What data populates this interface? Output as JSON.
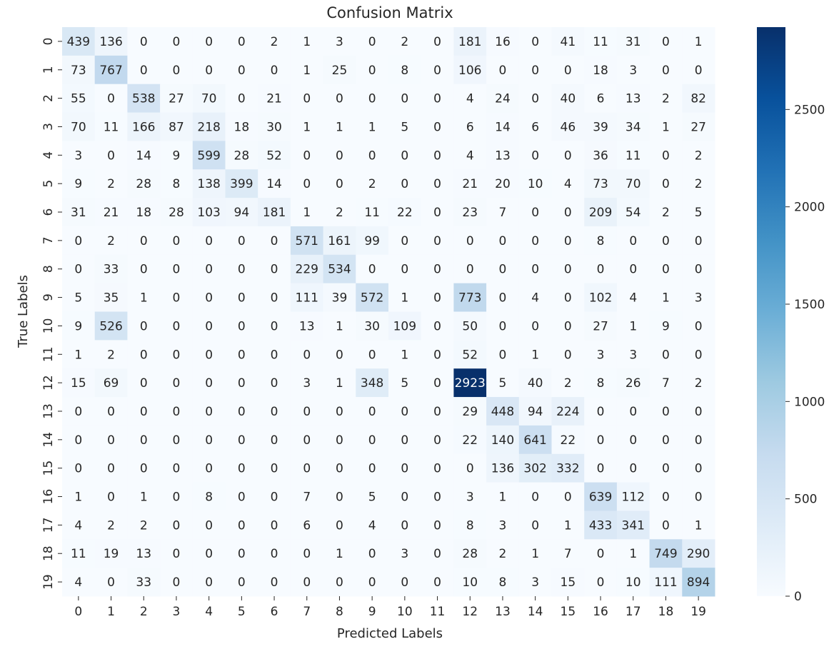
{
  "chart_data": {
    "type": "heatmap",
    "title": "Confusion Matrix",
    "xlabel": "Predicted Labels",
    "ylabel": "True Labels",
    "x_categories": [
      "0",
      "1",
      "2",
      "3",
      "4",
      "5",
      "6",
      "7",
      "8",
      "9",
      "10",
      "11",
      "12",
      "13",
      "14",
      "15",
      "16",
      "17",
      "18",
      "19"
    ],
    "y_categories": [
      "0",
      "1",
      "2",
      "3",
      "4",
      "5",
      "6",
      "7",
      "8",
      "9",
      "10",
      "11",
      "12",
      "13",
      "14",
      "15",
      "16",
      "17",
      "18",
      "19"
    ],
    "colormap": "Blues",
    "colorbar": {
      "min": 0,
      "max": 2923,
      "ticks": [
        0,
        500,
        1000,
        1500,
        2000,
        2500
      ]
    },
    "matrix": [
      [
        439,
        136,
        0,
        0,
        0,
        0,
        2,
        1,
        3,
        0,
        2,
        0,
        181,
        16,
        0,
        41,
        11,
        31,
        0,
        1
      ],
      [
        73,
        767,
        0,
        0,
        0,
        0,
        0,
        1,
        25,
        0,
        8,
        0,
        106,
        0,
        0,
        0,
        18,
        3,
        0,
        0
      ],
      [
        55,
        0,
        538,
        27,
        70,
        0,
        21,
        0,
        0,
        0,
        0,
        0,
        4,
        24,
        0,
        40,
        6,
        13,
        2,
        82
      ],
      [
        70,
        11,
        166,
        87,
        218,
        18,
        30,
        1,
        1,
        1,
        5,
        0,
        6,
        14,
        6,
        46,
        39,
        34,
        1,
        27
      ],
      [
        3,
        0,
        14,
        9,
        599,
        28,
        52,
        0,
        0,
        0,
        0,
        0,
        4,
        13,
        0,
        0,
        36,
        11,
        0,
        2
      ],
      [
        9,
        2,
        28,
        8,
        138,
        399,
        14,
        0,
        0,
        2,
        0,
        0,
        21,
        20,
        10,
        4,
        73,
        70,
        0,
        2
      ],
      [
        31,
        21,
        18,
        28,
        103,
        94,
        181,
        1,
        2,
        11,
        22,
        0,
        23,
        7,
        0,
        0,
        209,
        54,
        2,
        5
      ],
      [
        0,
        2,
        0,
        0,
        0,
        0,
        0,
        571,
        161,
        99,
        0,
        0,
        0,
        0,
        0,
        0,
        8,
        0,
        0,
        0
      ],
      [
        0,
        33,
        0,
        0,
        0,
        0,
        0,
        229,
        534,
        0,
        0,
        0,
        0,
        0,
        0,
        0,
        0,
        0,
        0,
        0
      ],
      [
        5,
        35,
        1,
        0,
        0,
        0,
        0,
        111,
        39,
        572,
        1,
        0,
        773,
        0,
        4,
        0,
        102,
        4,
        1,
        3
      ],
      [
        9,
        526,
        0,
        0,
        0,
        0,
        0,
        13,
        1,
        30,
        109,
        0,
        50,
        0,
        0,
        0,
        27,
        1,
        9,
        0
      ],
      [
        1,
        2,
        0,
        0,
        0,
        0,
        0,
        0,
        0,
        0,
        1,
        0,
        52,
        0,
        1,
        0,
        3,
        3,
        0,
        0
      ],
      [
        15,
        69,
        0,
        0,
        0,
        0,
        0,
        3,
        1,
        348,
        5,
        0,
        2923,
        5,
        40,
        2,
        8,
        26,
        7,
        2
      ],
      [
        0,
        0,
        0,
        0,
        0,
        0,
        0,
        0,
        0,
        0,
        0,
        0,
        29,
        448,
        94,
        224,
        0,
        0,
        0,
        0
      ],
      [
        0,
        0,
        0,
        0,
        0,
        0,
        0,
        0,
        0,
        0,
        0,
        0,
        22,
        140,
        641,
        22,
        0,
        0,
        0,
        0
      ],
      [
        0,
        0,
        0,
        0,
        0,
        0,
        0,
        0,
        0,
        0,
        0,
        0,
        0,
        136,
        302,
        332,
        0,
        0,
        0,
        0
      ],
      [
        1,
        0,
        1,
        0,
        8,
        0,
        0,
        7,
        0,
        5,
        0,
        0,
        3,
        1,
        0,
        0,
        639,
        112,
        0,
        0
      ],
      [
        4,
        2,
        2,
        0,
        0,
        0,
        0,
        6,
        0,
        4,
        0,
        0,
        8,
        3,
        0,
        1,
        433,
        341,
        0,
        1
      ],
      [
        11,
        19,
        13,
        0,
        0,
        0,
        0,
        0,
        1,
        0,
        3,
        0,
        28,
        2,
        1,
        7,
        0,
        1,
        749,
        290
      ],
      [
        4,
        0,
        33,
        0,
        0,
        0,
        0,
        0,
        0,
        0,
        0,
        0,
        10,
        8,
        3,
        15,
        0,
        10,
        111,
        894
      ]
    ]
  }
}
